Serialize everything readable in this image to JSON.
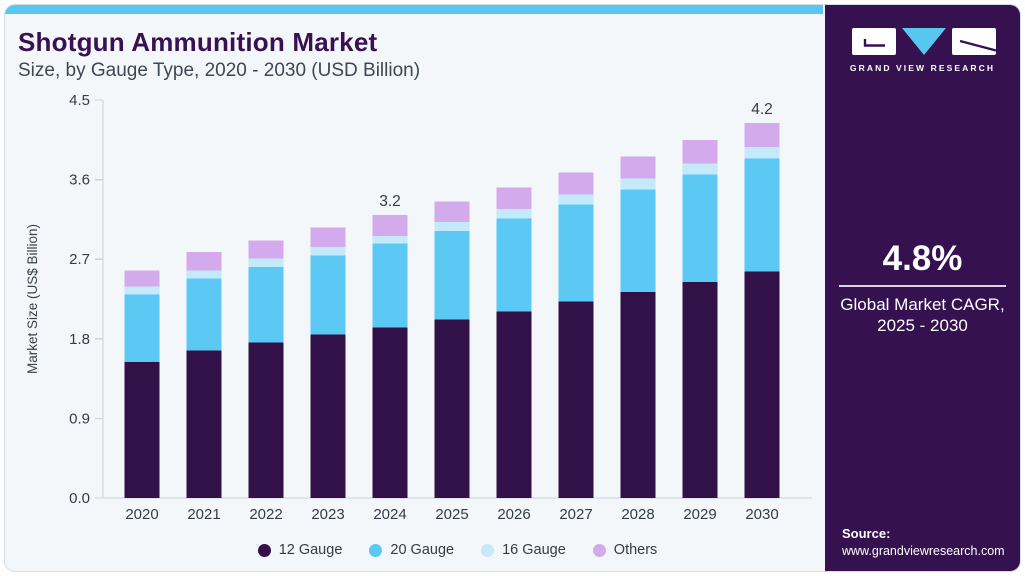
{
  "header": {
    "title": "Shotgun Ammunition Market",
    "subtitle": "Size, by Gauge Type, 2020 - 2030 (USD Billion)"
  },
  "sidebar": {
    "brand_name": "GRAND VIEW RESEARCH",
    "cagr_value": "4.8%",
    "cagr_caption": "Global Market CAGR,",
    "cagr_period": "2025 - 2030",
    "source_label": "Source:",
    "source_url": "www.grandviewresearch.com"
  },
  "colors": {
    "accent": "#57c7ef",
    "card_bg": "#f3f7fa",
    "card_border": "#d6dce3",
    "sidebar": "#351150",
    "title": "#3a1053",
    "axis": "#c9d0d8",
    "tick_text": "#333c47",
    "logo_glyph": "#351150"
  },
  "chart_data": {
    "type": "bar",
    "stacked": true,
    "title": "Shotgun Ammunition Market Size, by Gauge Type, 2020 - 2030 (USD Billion)",
    "xlabel": "",
    "ylabel": "Market Size (US$ Billion)",
    "categories": [
      "2020",
      "2021",
      "2022",
      "2023",
      "2024",
      "2025",
      "2026",
      "2027",
      "2028",
      "2029",
      "2030"
    ],
    "series": [
      {
        "name": "12 Gauge",
        "color": "#321148",
        "values": [
          1.54,
          1.67,
          1.76,
          1.85,
          1.93,
          2.02,
          2.11,
          2.22,
          2.33,
          2.44,
          2.56
        ]
      },
      {
        "name": "20 Gauge",
        "color": "#5bc9f4",
        "values": [
          0.76,
          0.81,
          0.85,
          0.89,
          0.95,
          1.0,
          1.05,
          1.1,
          1.16,
          1.22,
          1.28
        ]
      },
      {
        "name": "16 Gauge",
        "color": "#c4e9fb",
        "values": [
          0.09,
          0.09,
          0.1,
          0.1,
          0.08,
          0.1,
          0.11,
          0.11,
          0.12,
          0.12,
          0.13
        ]
      },
      {
        "name": "Others",
        "color": "#d3aaec",
        "values": [
          0.18,
          0.21,
          0.2,
          0.22,
          0.24,
          0.23,
          0.24,
          0.25,
          0.25,
          0.27,
          0.27
        ]
      }
    ],
    "yticks": [
      0.0,
      0.9,
      1.8,
      2.7,
      3.6,
      4.5
    ],
    "ylim": [
      0,
      4.5
    ],
    "grid": false,
    "legend_position": "bottom",
    "total_labels": [
      {
        "category": "2024",
        "text": "3.2"
      },
      {
        "category": "2030",
        "text": "4.2"
      }
    ]
  }
}
